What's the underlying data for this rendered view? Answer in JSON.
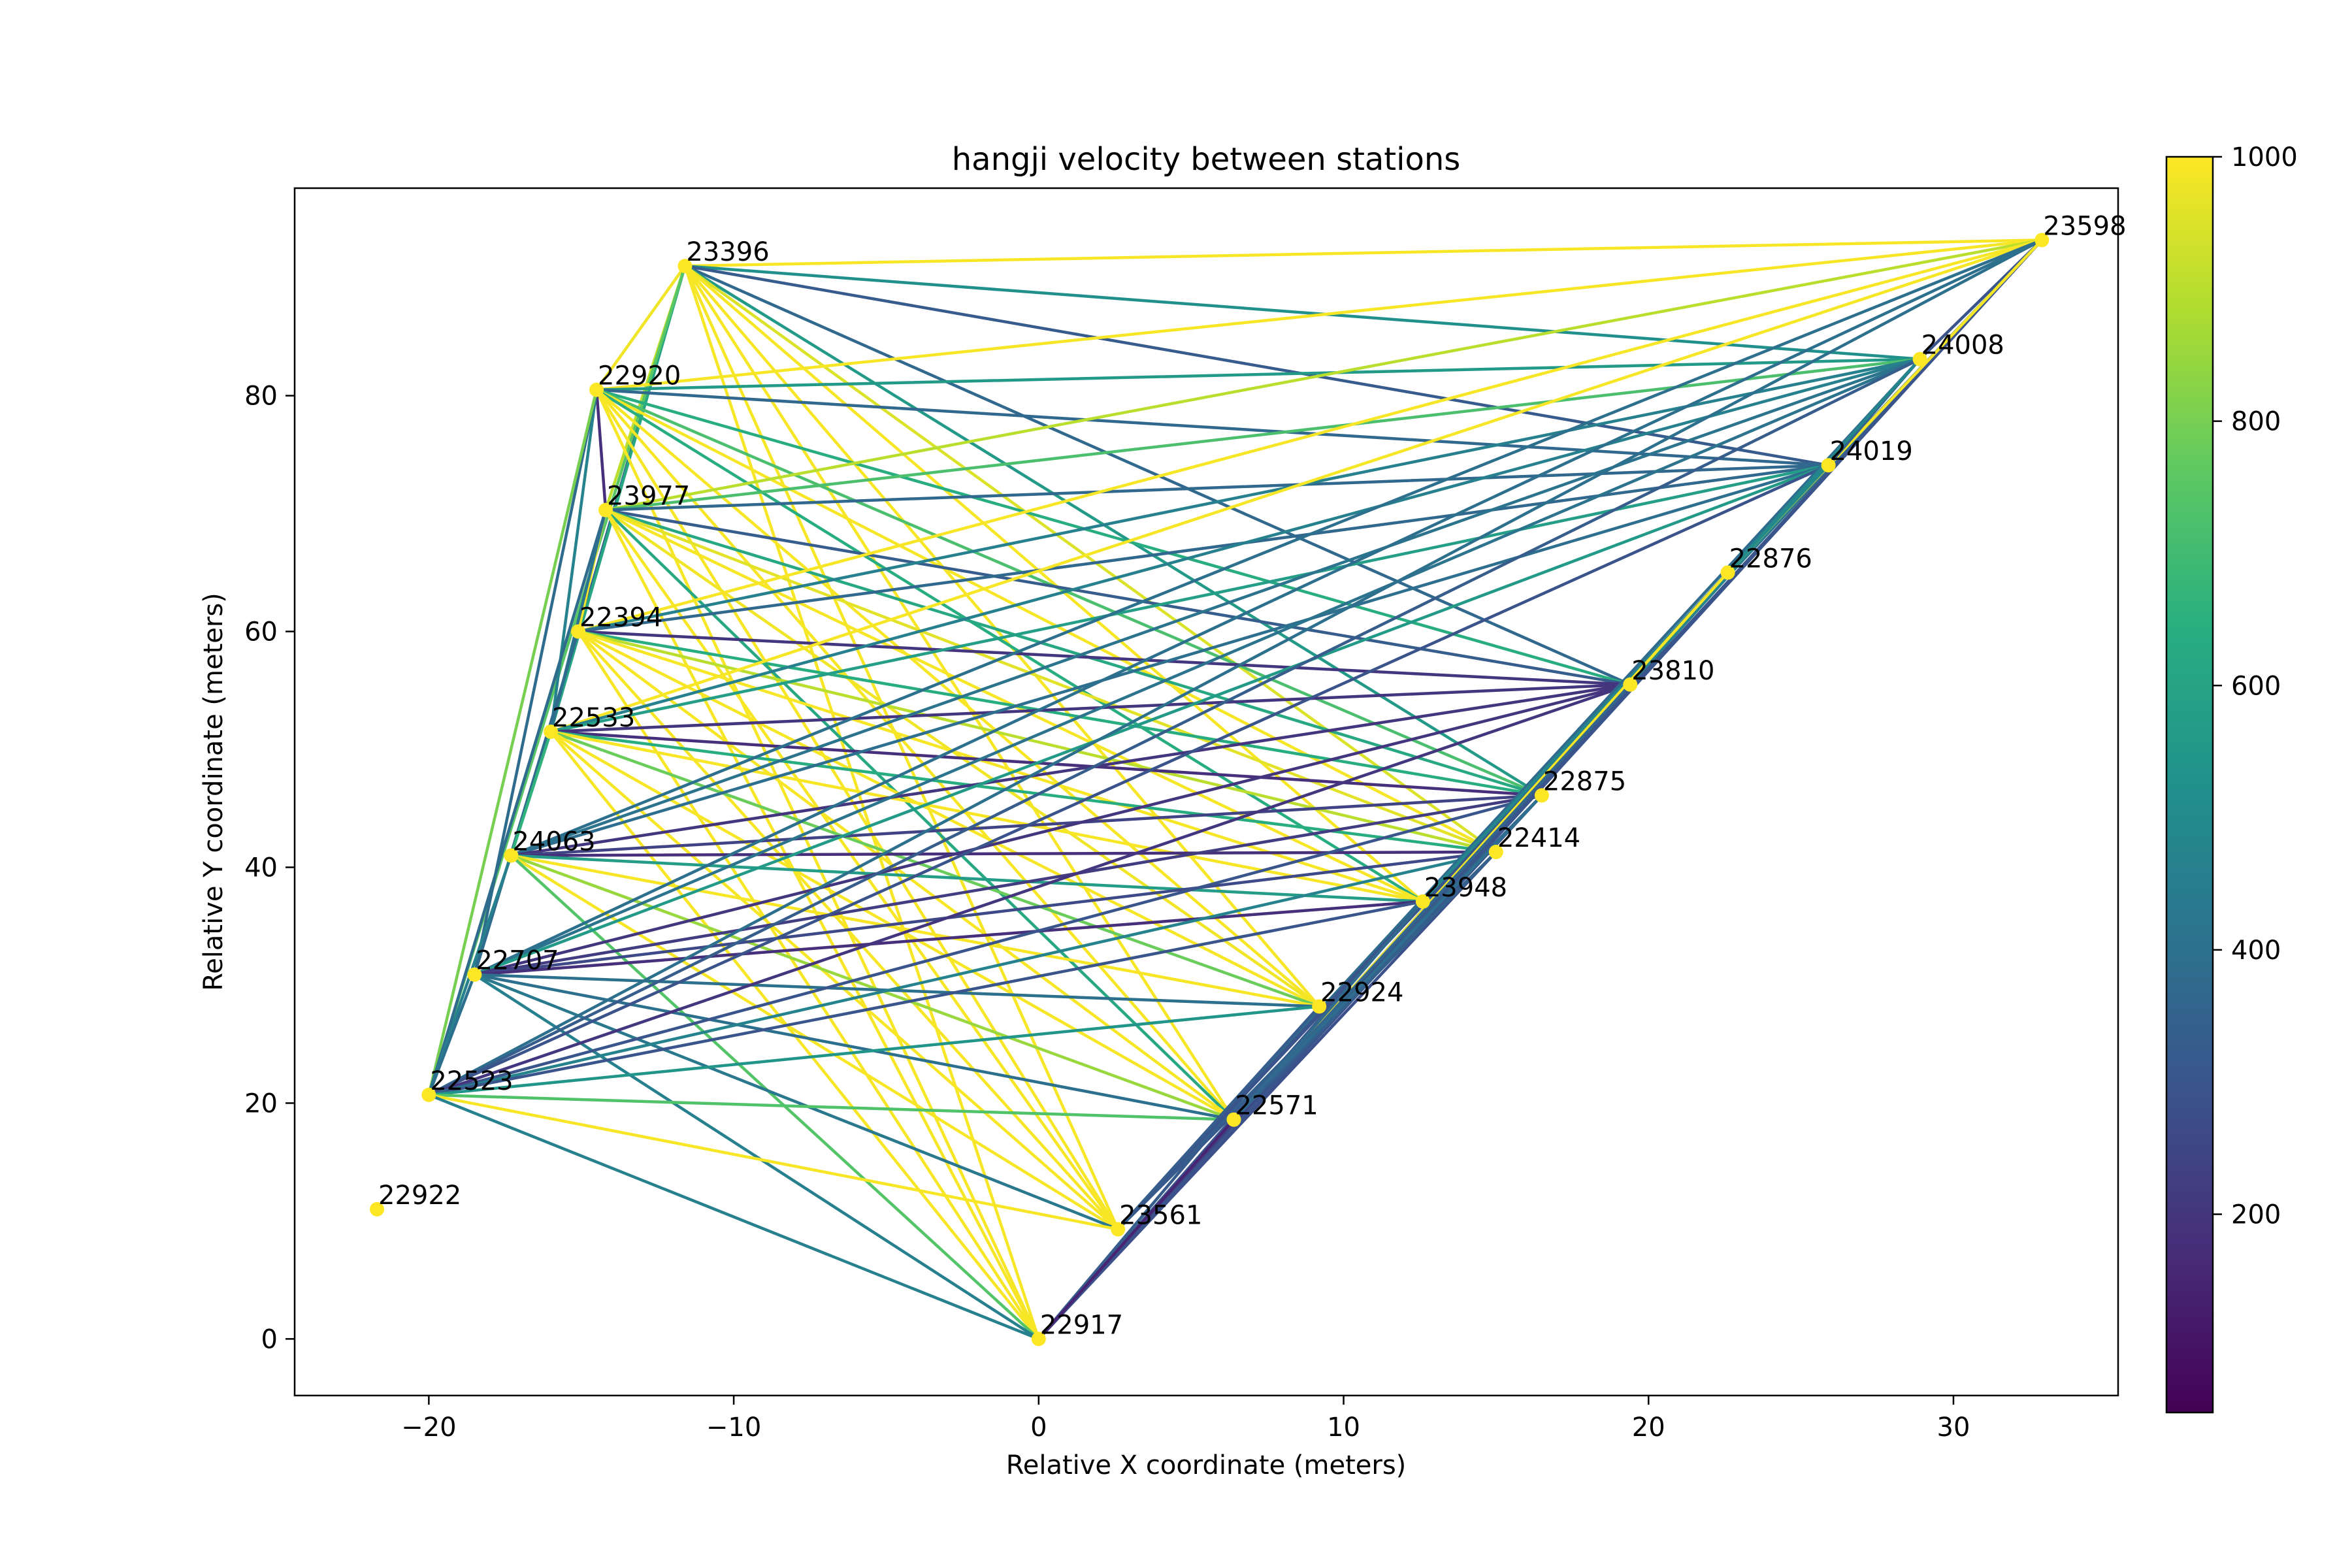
{
  "chart_data": {
    "type": "network",
    "title": "hangji velocity between stations",
    "xlabel": "Relative X coordinate (meters)",
    "ylabel": "Relative Y coordinate (meters)",
    "xlim": [
      -24.4,
      35.4
    ],
    "ylim": [
      -4.8,
      97.6
    ],
    "x_ticks": [
      -20,
      -10,
      0,
      10,
      20,
      30
    ],
    "x_tick_labels": [
      "−20",
      "−10",
      "0",
      "10",
      "20",
      "30"
    ],
    "y_ticks": [
      0,
      20,
      40,
      60,
      80
    ],
    "y_tick_labels": [
      "0",
      "20",
      "40",
      "60",
      "80"
    ],
    "grid": false,
    "colormap": "viridis",
    "colorbar": {
      "range": [
        50,
        1000
      ],
      "ticks": [
        200,
        400,
        600,
        800,
        1000
      ],
      "tick_labels": [
        "200",
        "400",
        "600",
        "800",
        "1000"
      ]
    },
    "stations": [
      {
        "id": "23598",
        "x": 32.9,
        "y": 93.2
      },
      {
        "id": "23396",
        "x": -11.6,
        "y": 91.0
      },
      {
        "id": "24008",
        "x": 28.9,
        "y": 83.1
      },
      {
        "id": "22920",
        "x": -14.5,
        "y": 80.5
      },
      {
        "id": "24019",
        "x": 25.9,
        "y": 74.1
      },
      {
        "id": "23977",
        "x": -14.2,
        "y": 70.3
      },
      {
        "id": "22876",
        "x": 22.6,
        "y": 65.0
      },
      {
        "id": "22394",
        "x": -15.1,
        "y": 60.0
      },
      {
        "id": "23810",
        "x": 19.4,
        "y": 55.5
      },
      {
        "id": "22533",
        "x": -16.0,
        "y": 51.5
      },
      {
        "id": "22875",
        "x": 16.5,
        "y": 46.1
      },
      {
        "id": "22414",
        "x": 15.0,
        "y": 41.3
      },
      {
        "id": "24063",
        "x": -17.3,
        "y": 41.0
      },
      {
        "id": "23948",
        "x": 12.6,
        "y": 37.1
      },
      {
        "id": "22707",
        "x": -18.5,
        "y": 30.9
      },
      {
        "id": "22924",
        "x": 9.2,
        "y": 28.2
      },
      {
        "id": "22523",
        "x": -20.0,
        "y": 20.7
      },
      {
        "id": "22571",
        "x": 6.4,
        "y": 18.6
      },
      {
        "id": "22922",
        "x": -21.7,
        "y": 11.0
      },
      {
        "id": "23561",
        "x": 2.6,
        "y": 9.3
      },
      {
        "id": "22917",
        "x": 0.0,
        "y": 0.0
      }
    ],
    "edges": [
      [
        "23396",
        "23598",
        990
      ],
      [
        "23396",
        "24008",
        520
      ],
      [
        "23396",
        "24019",
        320
      ],
      [
        "23396",
        "23810",
        370
      ],
      [
        "23396",
        "22875",
        560
      ],
      [
        "23396",
        "22414",
        950
      ],
      [
        "23396",
        "23948",
        990
      ],
      [
        "23396",
        "22924",
        990
      ],
      [
        "23396",
        "22571",
        990
      ],
      [
        "23396",
        "23561",
        990
      ],
      [
        "23396",
        "22917",
        990
      ],
      [
        "23396",
        "22920",
        980
      ],
      [
        "23396",
        "23977",
        900
      ],
      [
        "23396",
        "22394",
        330
      ],
      [
        "23396",
        "22533",
        610
      ],
      [
        "23396",
        "22523",
        750
      ],
      [
        "22920",
        "23598",
        990
      ],
      [
        "22920",
        "24008",
        560
      ],
      [
        "22920",
        "24019",
        370
      ],
      [
        "22920",
        "23810",
        640
      ],
      [
        "22920",
        "22875",
        720
      ],
      [
        "22920",
        "22414",
        990
      ],
      [
        "22920",
        "23948",
        640
      ],
      [
        "22920",
        "22924",
        990
      ],
      [
        "22920",
        "22571",
        990
      ],
      [
        "22920",
        "23561",
        990
      ],
      [
        "22920",
        "22917",
        990
      ],
      [
        "22920",
        "23977",
        180
      ],
      [
        "22920",
        "22533",
        470
      ],
      [
        "22920",
        "22707",
        380
      ],
      [
        "22920",
        "22523",
        800
      ],
      [
        "23977",
        "23598",
        900
      ],
      [
        "23977",
        "24008",
        720
      ],
      [
        "23977",
        "24019",
        370
      ],
      [
        "23977",
        "23810",
        330
      ],
      [
        "23977",
        "22875",
        620
      ],
      [
        "23977",
        "22414",
        960
      ],
      [
        "23977",
        "23948",
        990
      ],
      [
        "23977",
        "22924",
        980
      ],
      [
        "23977",
        "22571",
        620
      ],
      [
        "23977",
        "23561",
        990
      ],
      [
        "23977",
        "22917",
        990
      ],
      [
        "23977",
        "22394",
        990
      ],
      [
        "23977",
        "22533",
        420
      ],
      [
        "23977",
        "22523",
        380
      ],
      [
        "22394",
        "23598",
        990
      ],
      [
        "22394",
        "24008",
        460
      ],
      [
        "22394",
        "24019",
        370
      ],
      [
        "22394",
        "23810",
        200
      ],
      [
        "22394",
        "22875",
        640
      ],
      [
        "22394",
        "22414",
        900
      ],
      [
        "22394",
        "23948",
        990
      ],
      [
        "22394",
        "22924",
        990
      ],
      [
        "22394",
        "22571",
        990
      ],
      [
        "22394",
        "23561",
        990
      ],
      [
        "22394",
        "22917",
        990
      ],
      [
        "22394",
        "22707",
        380
      ],
      [
        "22533",
        "23598",
        990
      ],
      [
        "22533",
        "24008",
        460
      ],
      [
        "22533",
        "24019",
        580
      ],
      [
        "22533",
        "23810",
        200
      ],
      [
        "22533",
        "22875",
        180
      ],
      [
        "22533",
        "22414",
        640
      ],
      [
        "22533",
        "23948",
        990
      ],
      [
        "22533",
        "22924",
        780
      ],
      [
        "22533",
        "22571",
        990
      ],
      [
        "22533",
        "23561",
        990
      ],
      [
        "22533",
        "22917",
        990
      ],
      [
        "22533",
        "24063",
        660
      ],
      [
        "24063",
        "23598",
        400
      ],
      [
        "24063",
        "24008",
        410
      ],
      [
        "24063",
        "24019",
        390
      ],
      [
        "24063",
        "23810",
        200
      ],
      [
        "24063",
        "22875",
        240
      ],
      [
        "24063",
        "22414",
        180
      ],
      [
        "24063",
        "23948",
        570
      ],
      [
        "24063",
        "22924",
        990
      ],
      [
        "24063",
        "22571",
        850
      ],
      [
        "24063",
        "23561",
        990
      ],
      [
        "24063",
        "22917",
        740
      ],
      [
        "24063",
        "22523",
        460
      ],
      [
        "22707",
        "23598",
        400
      ],
      [
        "22707",
        "24008",
        410
      ],
      [
        "22707",
        "24019",
        560
      ],
      [
        "22707",
        "23810",
        200
      ],
      [
        "22707",
        "22875",
        220
      ],
      [
        "22707",
        "22414",
        260
      ],
      [
        "22707",
        "23948",
        180
      ],
      [
        "22707",
        "22924",
        400
      ],
      [
        "22707",
        "22571",
        400
      ],
      [
        "22707",
        "23561",
        430
      ],
      [
        "22707",
        "22917",
        460
      ],
      [
        "22707",
        "22523",
        400
      ],
      [
        "22523",
        "23598",
        400
      ],
      [
        "22523",
        "24008",
        330
      ],
      [
        "22523",
        "24019",
        290
      ],
      [
        "22523",
        "23810",
        200
      ],
      [
        "22523",
        "22875",
        300
      ],
      [
        "22523",
        "22414",
        470
      ],
      [
        "22523",
        "23948",
        300
      ],
      [
        "22523",
        "22924",
        540
      ],
      [
        "22523",
        "22571",
        730
      ],
      [
        "22523",
        "23561",
        990
      ],
      [
        "22523",
        "22917",
        460
      ],
      [
        "22917",
        "23598",
        300
      ],
      [
        "22917",
        "24008",
        330
      ],
      [
        "22917",
        "24019",
        400
      ],
      [
        "22917",
        "22876",
        460
      ],
      [
        "22917",
        "23810",
        240
      ],
      [
        "22917",
        "22875",
        300
      ],
      [
        "22917",
        "22414",
        280
      ],
      [
        "22917",
        "23948",
        300
      ],
      [
        "22917",
        "22924",
        330
      ],
      [
        "22917",
        "22571",
        150
      ],
      [
        "23561",
        "23598",
        400
      ],
      [
        "23561",
        "24008",
        380
      ],
      [
        "23561",
        "24019",
        440
      ],
      [
        "23561",
        "22876",
        480
      ],
      [
        "23561",
        "23810",
        300
      ],
      [
        "23561",
        "22875",
        340
      ],
      [
        "23561",
        "22414",
        320
      ],
      [
        "23561",
        "23948",
        300
      ],
      [
        "23561",
        "22924",
        330
      ],
      [
        "22571",
        "23598",
        300
      ],
      [
        "22571",
        "24008",
        450
      ],
      [
        "22571",
        "24019",
        480
      ],
      [
        "22571",
        "22876",
        990
      ],
      [
        "22571",
        "23810",
        360
      ],
      [
        "22571",
        "22875",
        390
      ],
      [
        "22571",
        "22414",
        340
      ],
      [
        "22571",
        "23948",
        370
      ],
      [
        "23598",
        "24008",
        300
      ],
      [
        "23598",
        "24019",
        430
      ],
      [
        "23598",
        "22876",
        990
      ],
      [
        "24008",
        "24019",
        350
      ],
      [
        "24008",
        "22876",
        480
      ],
      [
        "24019",
        "22876",
        500
      ]
    ]
  }
}
